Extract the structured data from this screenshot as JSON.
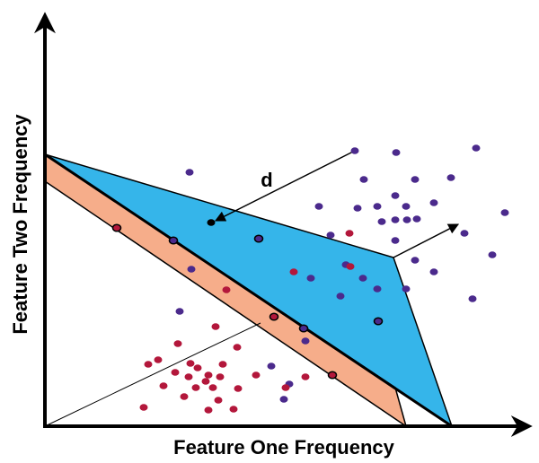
{
  "axes": {
    "x_label": "Feature One Frequency",
    "y_label": "Feature Two Frequency"
  },
  "annotation": "d"
}
